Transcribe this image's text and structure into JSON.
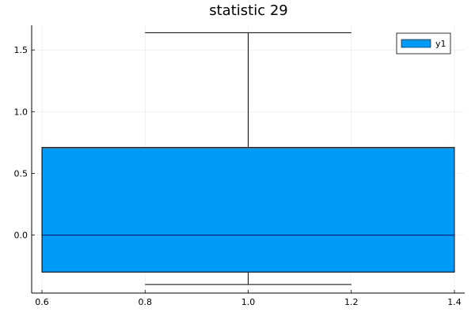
{
  "chart_data": {
    "type": "box",
    "title": "statistic 29",
    "xlabel": "",
    "ylabel": "",
    "xlim": [
      0.58,
      1.42
    ],
    "ylim": [
      -0.47,
      1.7
    ],
    "x_ticks": [
      0.6,
      0.8,
      1.0,
      1.2,
      1.4
    ],
    "x_tick_labels": [
      "0.6",
      "0.8",
      "1.0",
      "1.2",
      "1.4"
    ],
    "y_ticks": [
      0.0,
      0.5,
      1.0,
      1.5
    ],
    "y_tick_labels": [
      "0.0",
      "0.5",
      "1.0",
      "1.5"
    ],
    "grid": true,
    "legend_position": "top-right",
    "series": [
      {
        "name": "y1",
        "color": "#009af9",
        "box_x_range": [
          0.6,
          1.4
        ],
        "whisker_x_range": [
          0.8,
          1.2
        ],
        "center_x": 1.0,
        "whisker_low": -0.4,
        "q1": -0.3,
        "median": 0.0,
        "q3": 0.71,
        "whisker_high": 1.64
      }
    ]
  }
}
